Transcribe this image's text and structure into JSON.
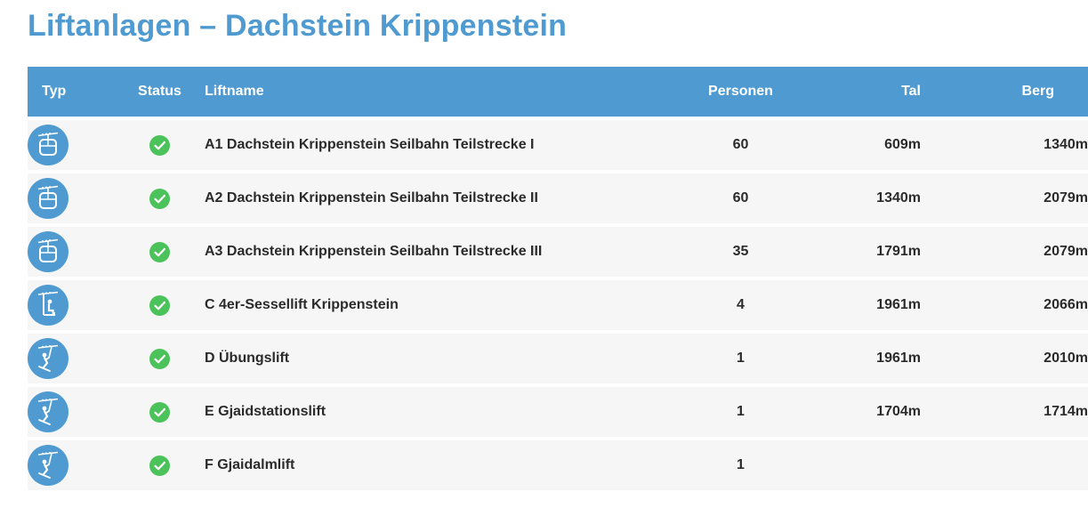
{
  "title": "Liftanlagen – Dachstein Krippenstein",
  "colors": {
    "accent": "#4f9bd1",
    "status_open": "#4cc25a",
    "row_bg": "#f6f6f6"
  },
  "table": {
    "headers": {
      "typ": "Typ",
      "status": "Status",
      "name": "Liftname",
      "personen": "Personen",
      "tal": "Tal",
      "berg": "Berg"
    },
    "rows": [
      {
        "type_icon": "gondola-icon",
        "status": "open",
        "name": "A1 Dachstein Krippenstein Seilbahn Teilstrecke I",
        "personen": "60",
        "tal": "609m",
        "berg": "1340m"
      },
      {
        "type_icon": "gondola-icon",
        "status": "open",
        "name": "A2 Dachstein Krippenstein Seilbahn Teilstrecke II",
        "personen": "60",
        "tal": "1340m",
        "berg": "2079m"
      },
      {
        "type_icon": "gondola-icon",
        "status": "open",
        "name": "A3 Dachstein Krippenstein Seilbahn Teilstrecke III",
        "personen": "35",
        "tal": "1791m",
        "berg": "2079m"
      },
      {
        "type_icon": "chairlift-icon",
        "status": "open",
        "name": "C 4er-Sessellift Krippenstein",
        "personen": "4",
        "tal": "1961m",
        "berg": "2066m"
      },
      {
        "type_icon": "surface-lift-icon",
        "status": "open",
        "name": "D Übungslift",
        "personen": "1",
        "tal": "1961m",
        "berg": "2010m"
      },
      {
        "type_icon": "surface-lift-icon",
        "status": "open",
        "name": "E Gjaidstationslift",
        "personen": "1",
        "tal": "1704m",
        "berg": "1714m"
      },
      {
        "type_icon": "surface-lift-icon",
        "status": "open",
        "name": "F Gjaidalmlift",
        "personen": "1",
        "tal": "",
        "berg": ""
      }
    ]
  }
}
